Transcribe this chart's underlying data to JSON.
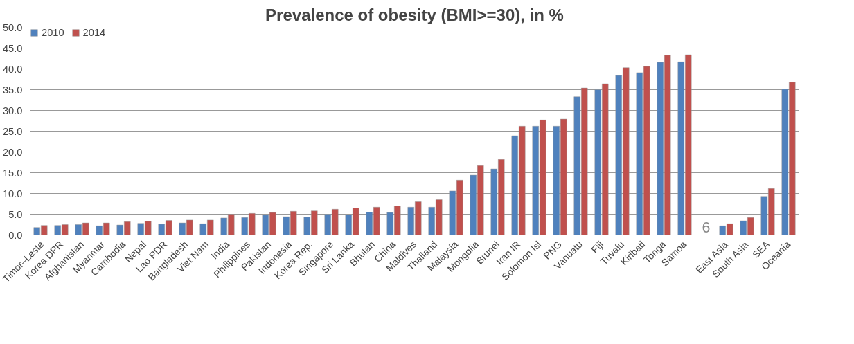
{
  "chart_data": {
    "type": "bar",
    "title": "Prevalence of obesity (BMI>=30), in %",
    "categories": [
      "Timor–Leste",
      "Korea DPR",
      "Afghanistan",
      "Myanmar",
      "Cambodia",
      "Nepal",
      "Lao PDR",
      "Bangladesh",
      "Viet Nam",
      "India",
      "Philippines",
      "Pakistan",
      "Indonesia",
      "Korea Rep.",
      "Singapore",
      "Sri Lanka",
      "Bhutan",
      "China",
      "Maldives",
      "Thailand",
      "Malaysia",
      "Mongolia",
      "Brunei",
      "Iran IR",
      "Solomon Isl",
      "PNG",
      "Vanuatu",
      "Fiji",
      "Tuvalu",
      "Kiribati",
      "Tonga",
      "Samoa",
      null,
      "East Asia",
      "South Asia",
      "SEA",
      "Oceania"
    ],
    "series": [
      {
        "name": "2010",
        "color": "#4f81bd",
        "values": [
          1.8,
          2.3,
          2.5,
          2.2,
          2.4,
          2.8,
          2.6,
          2.9,
          2.7,
          4.1,
          4.2,
          4.8,
          4.4,
          4.3,
          5.0,
          4.9,
          5.5,
          5.4,
          6.7,
          6.7,
          10.6,
          14.4,
          15.9,
          23.9,
          26.2,
          26.2,
          33.3,
          35.0,
          38.4,
          39.1,
          41.6,
          41.7,
          null,
          2.2,
          3.4,
          9.3,
          35.1
        ]
      },
      {
        "name": "2014",
        "color": "#c0504d",
        "values": [
          2.3,
          2.5,
          2.9,
          2.9,
          3.2,
          3.3,
          3.5,
          3.6,
          3.6,
          5.0,
          5.2,
          5.4,
          5.7,
          5.8,
          6.2,
          6.5,
          6.7,
          7.0,
          8.0,
          8.5,
          13.2,
          16.7,
          18.2,
          26.2,
          27.7,
          27.9,
          35.4,
          36.4,
          40.3,
          40.6,
          43.3,
          43.4,
          null,
          2.7,
          4.2,
          11.2,
          36.8
        ]
      }
    ],
    "ylim": [
      0,
      50
    ],
    "yticks": [
      {
        "value": 0,
        "label": "0.0"
      },
      {
        "value": 5,
        "label": "5.0"
      },
      {
        "value": 10,
        "label": "10.0"
      },
      {
        "value": 15,
        "label": "15.0"
      },
      {
        "value": 20,
        "label": "20.0"
      },
      {
        "value": 25,
        "label": "25.0"
      },
      {
        "value": 30,
        "label": "30.0"
      },
      {
        "value": 35,
        "label": "35.0"
      },
      {
        "value": 40,
        "label": "40.0"
      },
      {
        "value": 45,
        "label": "45.0"
      },
      {
        "value": 50,
        "label": "50.0"
      }
    ],
    "grid": "y",
    "legend": "top left",
    "annotations": [
      "6"
    ]
  }
}
